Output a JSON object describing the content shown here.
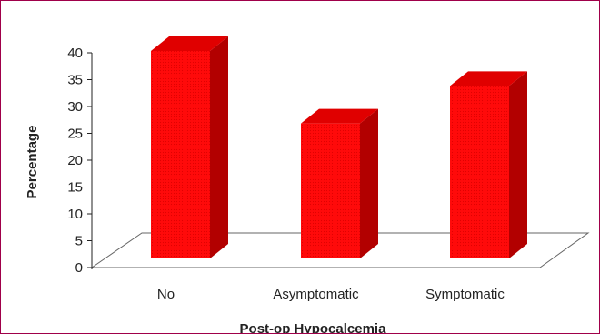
{
  "chart_data": {
    "type": "bar",
    "style": "3d-column",
    "categories": [
      "No",
      "Asymptomatic",
      "Symptomatic"
    ],
    "values": [
      40,
      26.5,
      33.5
    ],
    "xlabel": "Post-op Hypocalcemia",
    "ylabel": "Percentage",
    "ylim": [
      0,
      40
    ],
    "yticks": [
      "0",
      "5",
      "10",
      "15",
      "20",
      "25",
      "30",
      "35",
      "40"
    ],
    "grid": false,
    "legend": "none",
    "colors": {
      "bar_front": "#ff0a0a",
      "bar_side": "#b20000",
      "bar_top": "#e00000",
      "frame_border": "#a0004a",
      "floor_line": "#666666"
    }
  }
}
